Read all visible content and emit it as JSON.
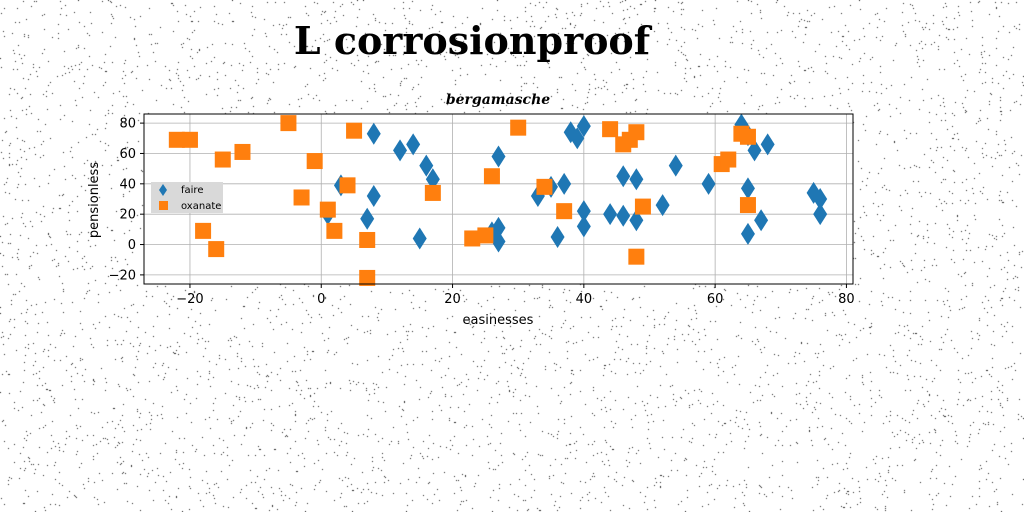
{
  "page": {
    "title": "L corrosionproof"
  },
  "chart_data": {
    "type": "scatter",
    "title": "bergamasche",
    "xlabel": "easinesses",
    "ylabel": "pensionless",
    "xlim": [
      -27,
      81
    ],
    "ylim": [
      -26,
      86
    ],
    "xticks": [
      -20,
      0,
      20,
      40,
      60,
      80
    ],
    "yticks": [
      -20,
      0,
      20,
      40,
      60,
      80
    ],
    "grid": true,
    "legend_position": "center-left",
    "series": [
      {
        "name": "faire",
        "marker": "diamond",
        "color": "#1f77b4",
        "points": [
          [
            8,
            73
          ],
          [
            12,
            62
          ],
          [
            14,
            66
          ],
          [
            15,
            4
          ],
          [
            16,
            52
          ],
          [
            17,
            43
          ],
          [
            8,
            32
          ],
          [
            3,
            39
          ],
          [
            7,
            17
          ],
          [
            1,
            20
          ],
          [
            26,
            8
          ],
          [
            27,
            58
          ],
          [
            27,
            11
          ],
          [
            27,
            2
          ],
          [
            33,
            32
          ],
          [
            35,
            38
          ],
          [
            36,
            5
          ],
          [
            37,
            40
          ],
          [
            38,
            74
          ],
          [
            39,
            70
          ],
          [
            40,
            78
          ],
          [
            40,
            22
          ],
          [
            40,
            12
          ],
          [
            44,
            20
          ],
          [
            46,
            19
          ],
          [
            46,
            45
          ],
          [
            48,
            43
          ],
          [
            48,
            16
          ],
          [
            52,
            26
          ],
          [
            54,
            52
          ],
          [
            59,
            40
          ],
          [
            64,
            79
          ],
          [
            65,
            72
          ],
          [
            65,
            7
          ],
          [
            65,
            37
          ],
          [
            66,
            62
          ],
          [
            68,
            66
          ],
          [
            67,
            16
          ],
          [
            75,
            34
          ],
          [
            76,
            30
          ],
          [
            76,
            20
          ]
        ]
      },
      {
        "name": "oxanate",
        "marker": "square",
        "color": "#ff7f0e",
        "points": [
          [
            -22,
            69
          ],
          [
            -20,
            69
          ],
          [
            -15,
            56
          ],
          [
            -12,
            61
          ],
          [
            -18,
            9
          ],
          [
            -16,
            -3
          ],
          [
            -5,
            80
          ],
          [
            -3,
            31
          ],
          [
            -1,
            55
          ],
          [
            1,
            23
          ],
          [
            2,
            9
          ],
          [
            4,
            39
          ],
          [
            5,
            75
          ],
          [
            7,
            3
          ],
          [
            7,
            -22
          ],
          [
            17,
            34
          ],
          [
            23,
            4
          ],
          [
            25,
            6
          ],
          [
            26,
            45
          ],
          [
            30,
            77
          ],
          [
            34,
            38
          ],
          [
            37,
            22
          ],
          [
            44,
            76
          ],
          [
            46,
            66
          ],
          [
            47,
            69
          ],
          [
            48,
            74
          ],
          [
            48,
            -8
          ],
          [
            49,
            25
          ],
          [
            61,
            53
          ],
          [
            62,
            56
          ],
          [
            64,
            73
          ],
          [
            65,
            71
          ],
          [
            65,
            26
          ]
        ]
      }
    ]
  }
}
